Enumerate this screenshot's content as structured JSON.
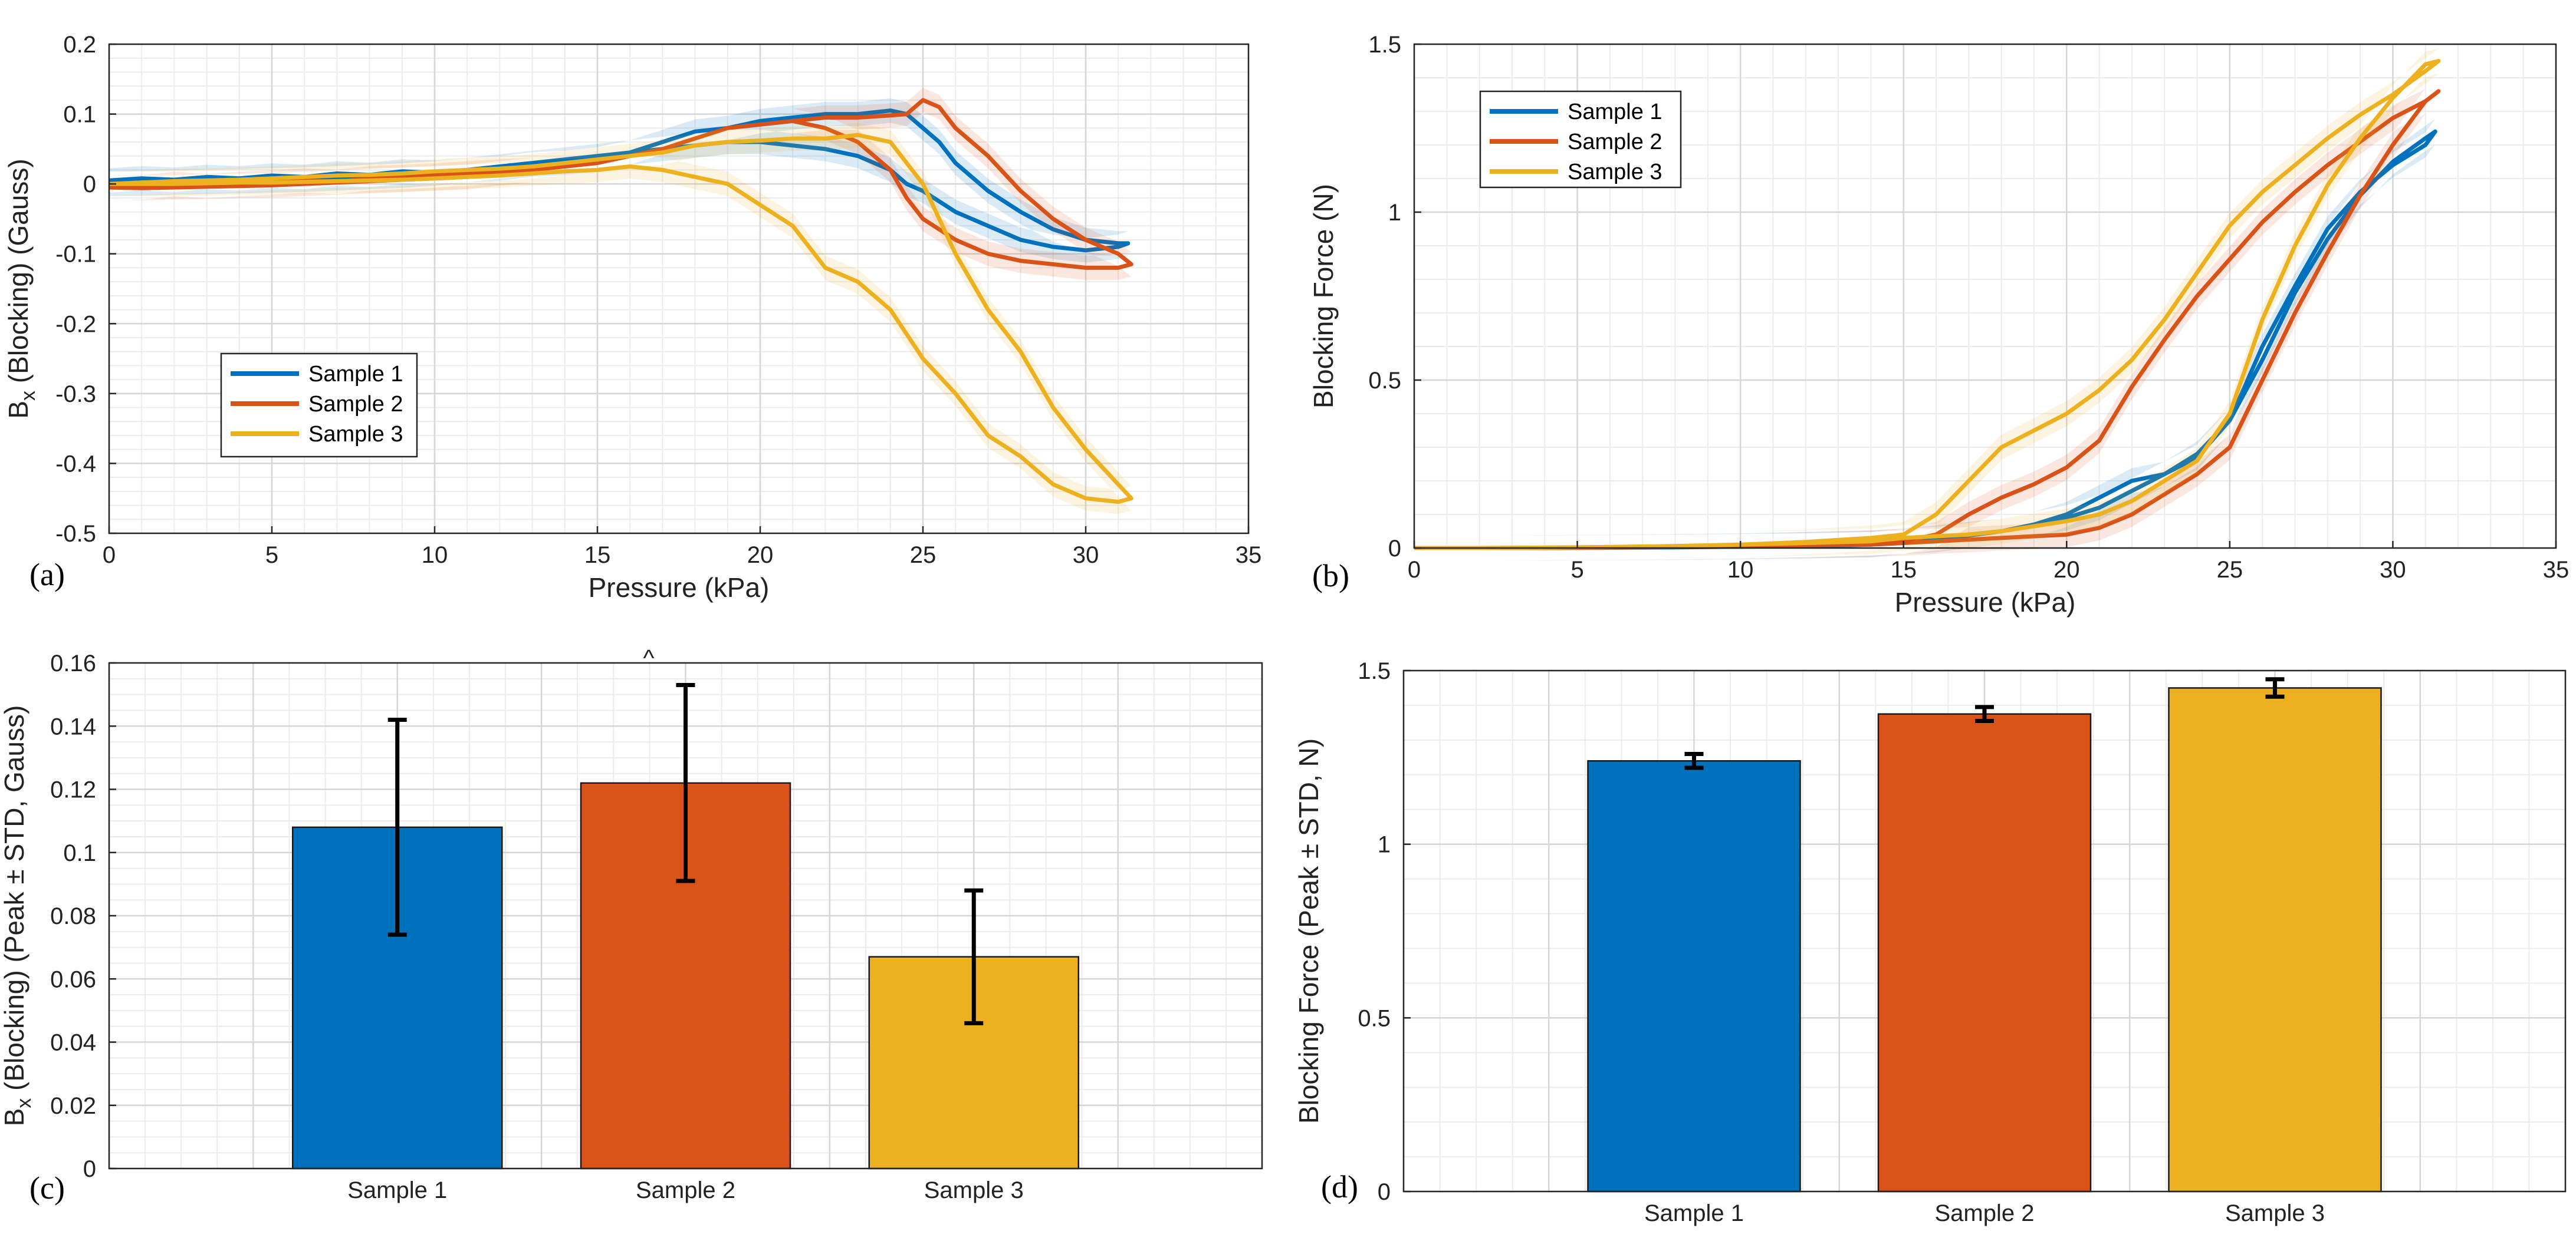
{
  "chart_data": [
    {
      "panel": "(a)",
      "type": "line",
      "xlabel": "Pressure (kPa)",
      "ylabel": "B_x (Blocking) (Gauss)",
      "xlim": [
        0,
        35
      ],
      "ylim": [
        -0.5,
        0.2
      ],
      "xticks": [
        0,
        5,
        10,
        15,
        20,
        25,
        30,
        35
      ],
      "yticks": [
        0.2,
        0.1,
        0,
        -0.1,
        -0.2,
        -0.3,
        -0.4,
        -0.5
      ],
      "grid": "on (major + minor)",
      "legend": "lower-left",
      "series": [
        {
          "name": "Sample 1",
          "color": "#0072BD",
          "x": [
            0,
            1,
            2,
            3,
            4,
            5,
            6,
            7,
            8,
            9,
            10,
            11,
            12,
            13,
            14,
            15,
            16,
            17,
            18,
            19,
            20,
            21,
            22,
            23,
            24,
            24.5,
            25,
            25.5,
            26,
            27,
            28,
            29,
            30,
            31,
            31.3,
            31,
            30,
            29,
            28,
            27,
            26,
            25,
            24.5,
            24,
            23,
            22,
            21,
            20,
            19,
            18,
            17,
            16,
            15,
            14,
            13,
            12,
            11,
            10,
            9,
            8,
            7,
            6,
            5,
            4,
            3,
            2,
            1,
            0
          ],
          "y": [
            0.005,
            0.008,
            0.006,
            0.01,
            0.008,
            0.012,
            0.01,
            0.015,
            0.013,
            0.018,
            0.016,
            0.02,
            0.022,
            0.028,
            0.03,
            0.035,
            0.045,
            0.06,
            0.075,
            0.08,
            0.09,
            0.095,
            0.1,
            0.1,
            0.105,
            0.1,
            0.08,
            0.06,
            0.03,
            -0.01,
            -0.04,
            -0.065,
            -0.08,
            -0.085,
            -0.085,
            -0.09,
            -0.095,
            -0.09,
            -0.08,
            -0.06,
            -0.04,
            -0.01,
            0.0,
            0.02,
            0.04,
            0.05,
            0.055,
            0.06,
            0.06,
            0.055,
            0.05,
            0.045,
            0.04,
            0.035,
            0.03,
            0.025,
            0.02,
            0.015,
            0.012,
            0.01,
            0.008,
            0.006,
            0.005,
            0.004,
            0.003,
            0.002,
            0.001,
            0.0
          ]
        },
        {
          "name": "Sample 2",
          "color": "#D95319",
          "x": [
            0,
            1,
            2,
            3,
            4,
            5,
            6,
            7,
            8,
            9,
            10,
            11,
            12,
            13,
            14,
            15,
            16,
            17,
            18,
            19,
            20,
            21,
            22,
            23,
            24,
            24.5,
            25,
            25.5,
            26,
            27,
            28,
            29,
            30,
            31,
            31.4,
            31,
            30,
            29,
            28,
            27,
            26,
            25,
            24.5,
            24,
            23,
            22,
            21,
            20,
            19,
            18,
            17,
            16,
            15,
            14,
            13,
            12,
            11,
            10,
            9,
            8,
            7,
            6,
            5,
            4,
            3,
            2,
            1,
            0
          ],
          "y": [
            -0.005,
            -0.005,
            0.0,
            -0.003,
            0.0,
            0.002,
            0.005,
            0.003,
            0.008,
            0.01,
            0.012,
            0.015,
            0.018,
            0.02,
            0.025,
            0.03,
            0.04,
            0.05,
            0.065,
            0.08,
            0.085,
            0.09,
            0.095,
            0.095,
            0.098,
            0.1,
            0.12,
            0.11,
            0.08,
            0.04,
            -0.01,
            -0.05,
            -0.08,
            -0.1,
            -0.115,
            -0.12,
            -0.12,
            -0.115,
            -0.11,
            -0.1,
            -0.08,
            -0.05,
            -0.02,
            0.02,
            0.06,
            0.08,
            0.09,
            0.085,
            0.08,
            0.065,
            0.05,
            0.04,
            0.03,
            0.025,
            0.02,
            0.015,
            0.01,
            0.008,
            0.006,
            0.004,
            0.002,
            0.0,
            -0.002,
            -0.003,
            -0.004,
            -0.005,
            -0.006,
            -0.005
          ]
        },
        {
          "name": "Sample 3",
          "color": "#EDB120",
          "x": [
            0,
            1,
            2,
            3,
            4,
            5,
            6,
            7,
            8,
            9,
            10,
            11,
            12,
            13,
            14,
            15,
            16,
            17,
            18,
            19,
            20,
            21,
            22,
            23,
            24,
            25,
            26,
            27,
            28,
            29,
            30,
            31,
            31.4,
            31,
            30,
            29,
            28,
            27,
            26,
            25,
            24,
            23,
            22,
            21,
            20,
            19,
            18,
            17,
            16,
            15,
            14,
            13,
            12,
            11,
            10,
            9,
            8,
            7,
            6,
            5,
            4,
            3,
            2,
            1,
            0
          ],
          "y": [
            0.0,
            0.002,
            0.004,
            0.005,
            0.006,
            0.008,
            0.01,
            0.012,
            0.013,
            0.015,
            0.018,
            0.02,
            0.022,
            0.025,
            0.03,
            0.035,
            0.04,
            0.045,
            0.055,
            0.06,
            0.062,
            0.065,
            0.065,
            0.07,
            0.06,
            0.0,
            -0.1,
            -0.18,
            -0.24,
            -0.32,
            -0.38,
            -0.43,
            -0.45,
            -0.455,
            -0.45,
            -0.43,
            -0.39,
            -0.36,
            -0.3,
            -0.25,
            -0.18,
            -0.14,
            -0.12,
            -0.06,
            -0.03,
            0.0,
            0.01,
            0.02,
            0.025,
            0.02,
            0.018,
            0.015,
            0.012,
            0.01,
            0.008,
            0.006,
            0.005,
            0.004,
            0.003,
            0.002,
            0.002,
            0.001,
            0.0,
            0.0,
            0.0
          ]
        }
      ]
    },
    {
      "panel": "(b)",
      "type": "line",
      "xlabel": "Pressure (kPa)",
      "ylabel": "Blocking Force (N)",
      "xlim": [
        0,
        35
      ],
      "ylim": [
        0,
        1.5
      ],
      "xticks": [
        0,
        5,
        10,
        15,
        20,
        25,
        30,
        35
      ],
      "yticks": [
        1.5,
        1,
        0.5,
        0
      ],
      "grid": "on (major + minor)",
      "legend": "top-left",
      "series": [
        {
          "name": "Sample 1",
          "color": "#0072BD",
          "x": [
            0,
            2,
            4,
            6,
            8,
            10,
            12,
            14,
            16,
            18,
            20,
            21,
            22,
            23,
            24,
            25,
            26,
            27,
            28,
            29,
            30,
            31,
            31.3,
            31,
            30,
            29,
            28,
            27,
            26,
            25,
            24,
            23,
            22,
            21,
            20,
            19,
            18,
            17,
            16,
            15,
            14,
            12,
            10,
            8,
            6,
            4,
            2,
            0
          ],
          "y": [
            0.0,
            0.0,
            0.0,
            0.001,
            0.003,
            0.006,
            0.01,
            0.015,
            0.025,
            0.05,
            0.09,
            0.12,
            0.17,
            0.22,
            0.27,
            0.38,
            0.6,
            0.78,
            0.95,
            1.06,
            1.14,
            1.2,
            1.24,
            1.22,
            1.15,
            1.05,
            0.92,
            0.76,
            0.56,
            0.38,
            0.28,
            0.22,
            0.2,
            0.15,
            0.1,
            0.07,
            0.05,
            0.04,
            0.03,
            0.02,
            0.01,
            0.006,
            0.004,
            0.002,
            0.001,
            0.0,
            0.0,
            0.0
          ]
        },
        {
          "name": "Sample 2",
          "color": "#D95319",
          "x": [
            0,
            2,
            4,
            6,
            8,
            10,
            12,
            14,
            15,
            16,
            17,
            18,
            19,
            20,
            21,
            22,
            23,
            24,
            25,
            26,
            27,
            28,
            29,
            30,
            31,
            31.4,
            31,
            30,
            29,
            28,
            27,
            26,
            25,
            24,
            23,
            22,
            21,
            20,
            19,
            18,
            17,
            16,
            15,
            14,
            12,
            10,
            8,
            6,
            4,
            2,
            0
          ],
          "y": [
            0.0,
            0.0,
            0.0,
            0.001,
            0.003,
            0.006,
            0.01,
            0.015,
            0.02,
            0.04,
            0.1,
            0.15,
            0.19,
            0.24,
            0.32,
            0.48,
            0.62,
            0.75,
            0.86,
            0.97,
            1.06,
            1.14,
            1.21,
            1.28,
            1.33,
            1.36,
            1.33,
            1.2,
            1.05,
            0.88,
            0.7,
            0.5,
            0.3,
            0.22,
            0.16,
            0.1,
            0.06,
            0.04,
            0.035,
            0.03,
            0.025,
            0.02,
            0.015,
            0.01,
            0.008,
            0.006,
            0.004,
            0.002,
            0.001,
            0.0,
            0.0
          ]
        },
        {
          "name": "Sample 3",
          "color": "#EDB120",
          "x": [
            0,
            2,
            4,
            6,
            8,
            10,
            12,
            14,
            15,
            16,
            17,
            18,
            19,
            20,
            21,
            22,
            23,
            24,
            25,
            26,
            27,
            28,
            29,
            30,
            31,
            31.4,
            31,
            30,
            29,
            28,
            27,
            26,
            25,
            24,
            23,
            22,
            21,
            20,
            19,
            18,
            17,
            16,
            15,
            14,
            12,
            10,
            8,
            6,
            4,
            2,
            0
          ],
          "y": [
            0.0,
            0.0,
            0.001,
            0.003,
            0.006,
            0.01,
            0.018,
            0.03,
            0.04,
            0.1,
            0.2,
            0.3,
            0.35,
            0.4,
            0.47,
            0.56,
            0.68,
            0.82,
            0.96,
            1.06,
            1.14,
            1.22,
            1.29,
            1.35,
            1.42,
            1.45,
            1.44,
            1.34,
            1.22,
            1.08,
            0.9,
            0.68,
            0.4,
            0.26,
            0.2,
            0.14,
            0.1,
            0.08,
            0.065,
            0.05,
            0.04,
            0.035,
            0.03,
            0.02,
            0.015,
            0.01,
            0.006,
            0.003,
            0.001,
            0.0,
            0.0
          ]
        }
      ]
    },
    {
      "panel": "(c)",
      "type": "bar",
      "categories": [
        "Sample 1",
        "Sample 2",
        "Sample 3"
      ],
      "values": [
        0.108,
        0.122,
        0.067
      ],
      "errors": [
        0.034,
        0.031,
        0.021
      ],
      "colors": [
        "#0072BD",
        "#D95319",
        "#EDB120"
      ],
      "ylabel": "B_x (Blocking) (Peak ± STD, Gauss)",
      "ylim": [
        0,
        0.16
      ],
      "yticks": [
        0.16,
        0.14,
        0.12,
        0.1,
        0.08,
        0.06,
        0.04,
        0.02,
        0
      ],
      "grid": "on (major + minor)",
      "stray_mark": "^"
    },
    {
      "panel": "(d)",
      "type": "bar",
      "categories": [
        "Sample 1",
        "Sample 2",
        "Sample 3"
      ],
      "values": [
        1.24,
        1.375,
        1.45
      ],
      "errors": [
        0.02,
        0.02,
        0.025
      ],
      "colors": [
        "#0072BD",
        "#D95319",
        "#EDB120"
      ],
      "ylabel": "Blocking Force (Peak ± STD, N)",
      "ylim": [
        0,
        1.5
      ],
      "yticks": [
        1.5,
        1,
        0.5,
        0
      ],
      "grid": "on (major + minor)"
    }
  ]
}
